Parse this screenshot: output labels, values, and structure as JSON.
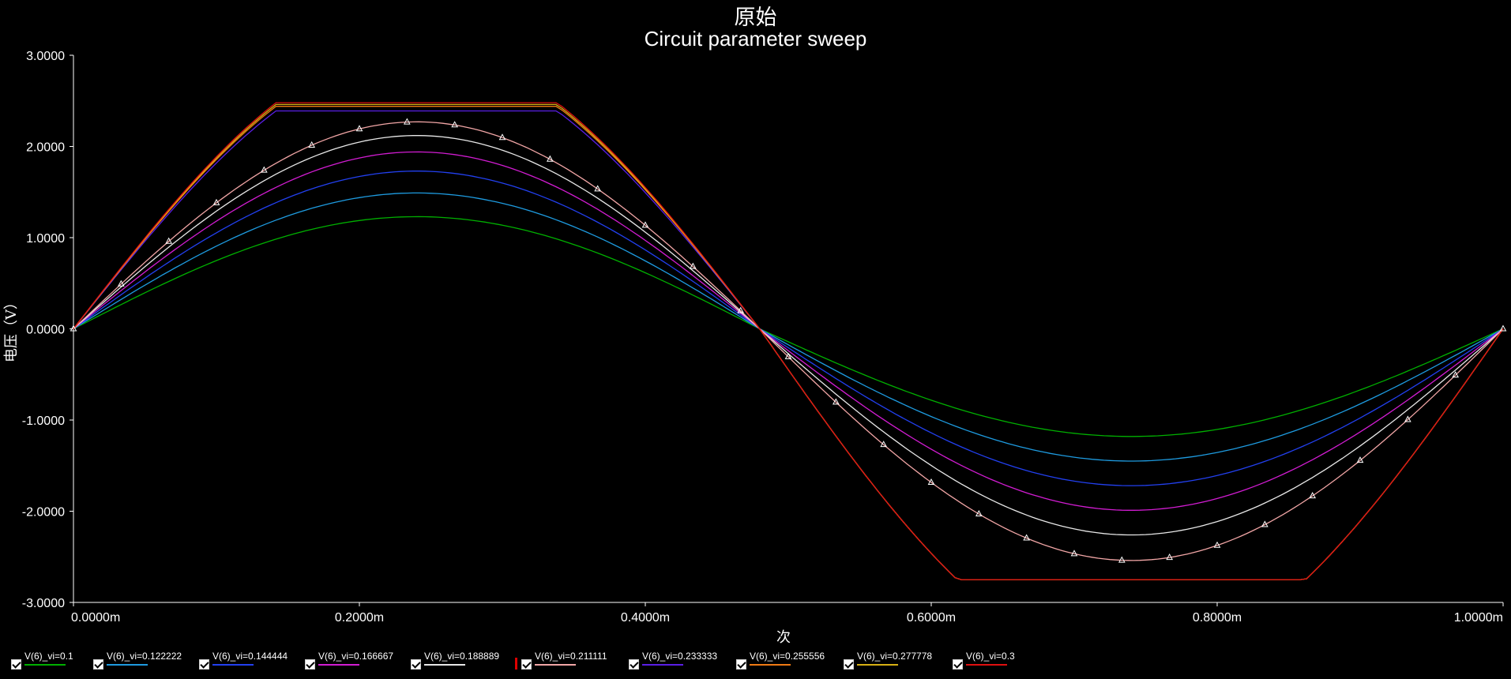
{
  "window": {
    "title_cn": "原始",
    "subtitle": "Circuit parameter sweep"
  },
  "chart_data": {
    "type": "line",
    "title": "原始",
    "subtitle": "Circuit parameter sweep",
    "xlabel": "次",
    "ylabel": "电压（V）",
    "xlim": [
      0,
      0.001
    ],
    "ylim": [
      -3,
      3
    ],
    "x_ticks": [
      "0.0000m",
      "0.2000m",
      "0.4000m",
      "0.6000m",
      "0.8000m",
      "1.0000m"
    ],
    "y_ticks": [
      "3.0000",
      "2.0000",
      "1.0000",
      "0.0000",
      "-1.0000",
      "-2.0000",
      "-3.0000"
    ],
    "x_tick_values": [
      0,
      0.0002,
      0.0004,
      0.0006,
      0.0008,
      0.001
    ],
    "y_tick_values": [
      3,
      2,
      1,
      0,
      -1,
      -2,
      -3
    ],
    "waveform": "sine with clipping near -2.75 V / +2.48 V",
    "zero_crossing_x": 0.00048,
    "period_x": 0.001,
    "saturation": {
      "low": -2.75,
      "high": 2.48
    },
    "highlighted_series": "V(6)_vi=0.211111",
    "series": [
      {
        "name": "V(6)_vi=0.1",
        "color": "#00b000",
        "min": -1.18,
        "max": 1.23
      },
      {
        "name": "V(6)_vi=0.122222",
        "color": "#1e9be0",
        "min": -1.45,
        "max": 1.49
      },
      {
        "name": "V(6)_vi=0.144444",
        "color": "#2240f0",
        "min": -1.72,
        "max": 1.73
      },
      {
        "name": "V(6)_vi=0.166667",
        "color": "#d21cd2",
        "min": -1.99,
        "max": 1.94
      },
      {
        "name": "V(6)_vi=0.188889",
        "color": "#e8e8e8",
        "min": -2.26,
        "max": 2.12
      },
      {
        "name": "V(6)_vi=0.211111",
        "color": "#f2a6a6",
        "min": -2.54,
        "max": 2.27
      },
      {
        "name": "V(6)_vi=0.233333",
        "color": "#5a1ee6",
        "min": -2.75,
        "max": 2.39
      },
      {
        "name": "V(6)_vi=0.255556",
        "color": "#f07a14",
        "min": -2.75,
        "max": 2.44
      },
      {
        "name": "V(6)_vi=0.277778",
        "color": "#d7b014",
        "min": -2.75,
        "max": 2.46
      },
      {
        "name": "V(6)_vi=0.3",
        "color": "#e01010",
        "min": -2.75,
        "max": 2.48
      }
    ]
  },
  "legend": {
    "items": [
      {
        "label": "V(6)_vi=0.1",
        "color": "#00b000",
        "checked": true
      },
      {
        "label": "V(6)_vi=0.122222",
        "color": "#1e9be0",
        "checked": true
      },
      {
        "label": "V(6)_vi=0.144444",
        "color": "#2240f0",
        "checked": true
      },
      {
        "label": "V(6)_vi=0.166667",
        "color": "#d21cd2",
        "checked": true
      },
      {
        "label": "V(6)_vi=0.188889",
        "color": "#e8e8e8",
        "checked": true
      },
      {
        "label": "V(6)_vi=0.211111",
        "color": "#f2a6a6",
        "checked": true,
        "selected": true
      },
      {
        "label": "V(6)_vi=0.233333",
        "color": "#5a1ee6",
        "checked": true
      },
      {
        "label": "V(6)_vi=0.255556",
        "color": "#f07a14",
        "checked": true
      },
      {
        "label": "V(6)_vi=0.277778",
        "color": "#d7b014",
        "checked": true
      },
      {
        "label": "V(6)_vi=0.3",
        "color": "#e01010",
        "checked": true
      }
    ]
  },
  "colors": {
    "background": "#000000",
    "axis": "#ffffff",
    "marker": "#ffffff"
  }
}
